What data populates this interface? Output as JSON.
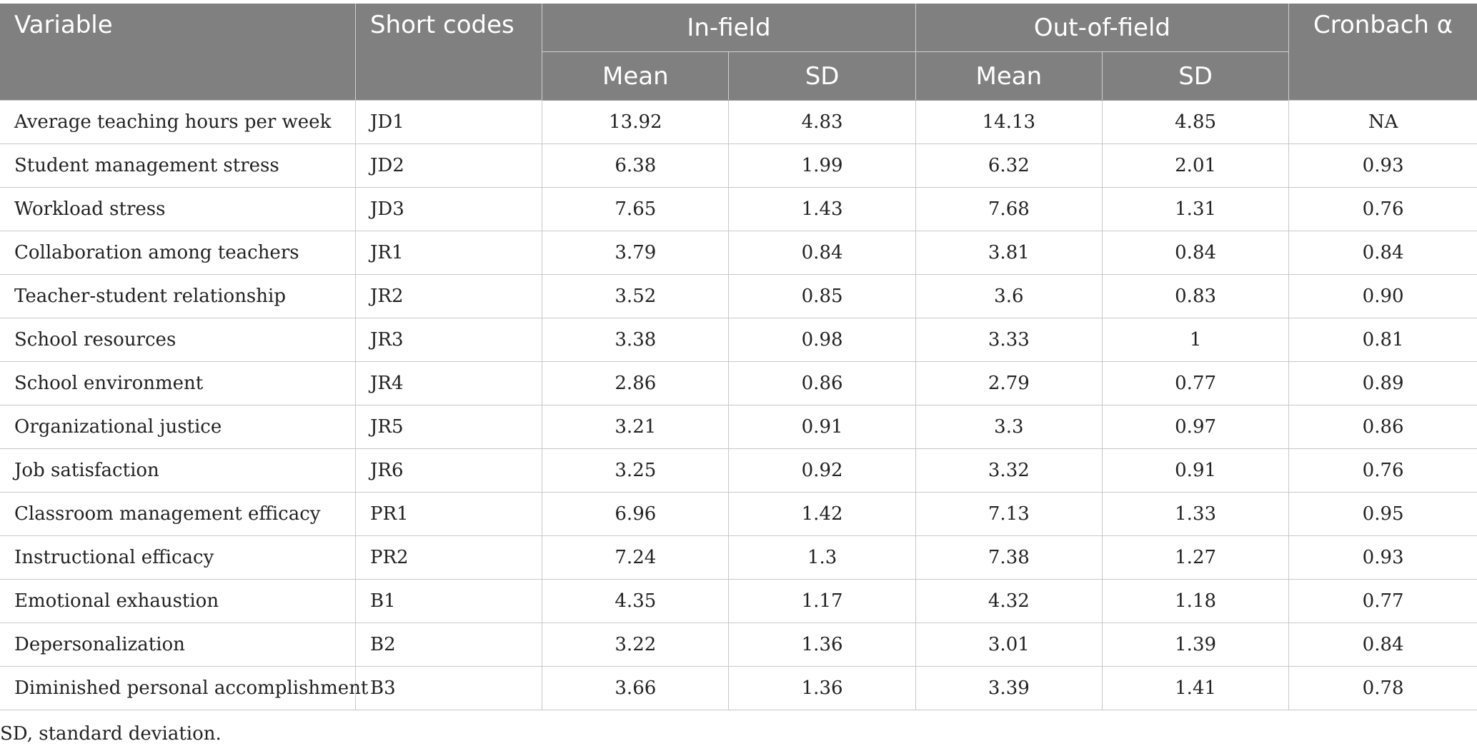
{
  "table": {
    "headers": {
      "variable": "Variable",
      "short_codes": "Short codes",
      "in_field": "In-field",
      "out_of_field": "Out-of-field",
      "cronbach": "Cronbach α",
      "mean": "Mean",
      "sd": "SD"
    },
    "rows": [
      {
        "variable": "Average teaching hours per week",
        "code": "JD1",
        "in_mean": "13.92",
        "in_sd": "4.83",
        "out_mean": "14.13",
        "out_sd": "4.85",
        "alpha": "NA"
      },
      {
        "variable": "Student management stress",
        "code": "JD2",
        "in_mean": "6.38",
        "in_sd": "1.99",
        "out_mean": "6.32",
        "out_sd": "2.01",
        "alpha": "0.93"
      },
      {
        "variable": "Workload stress",
        "code": "JD3",
        "in_mean": "7.65",
        "in_sd": "1.43",
        "out_mean": "7.68",
        "out_sd": "1.31",
        "alpha": "0.76"
      },
      {
        "variable": "Collaboration among teachers",
        "code": "JR1",
        "in_mean": "3.79",
        "in_sd": "0.84",
        "out_mean": "3.81",
        "out_sd": "0.84",
        "alpha": "0.84"
      },
      {
        "variable": "Teacher-student relationship",
        "code": "JR2",
        "in_mean": "3.52",
        "in_sd": "0.85",
        "out_mean": "3.6",
        "out_sd": "0.83",
        "alpha": "0.90"
      },
      {
        "variable": "School resources",
        "code": "JR3",
        "in_mean": "3.38",
        "in_sd": "0.98",
        "out_mean": "3.33",
        "out_sd": "1",
        "alpha": "0.81"
      },
      {
        "variable": "School environment",
        "code": "JR4",
        "in_mean": "2.86",
        "in_sd": "0.86",
        "out_mean": "2.79",
        "out_sd": "0.77",
        "alpha": "0.89"
      },
      {
        "variable": "Organizational justice",
        "code": "JR5",
        "in_mean": "3.21",
        "in_sd": "0.91",
        "out_mean": "3.3",
        "out_sd": "0.97",
        "alpha": "0.86"
      },
      {
        "variable": "Job satisfaction",
        "code": "JR6",
        "in_mean": "3.25",
        "in_sd": "0.92",
        "out_mean": "3.32",
        "out_sd": "0.91",
        "alpha": "0.76"
      },
      {
        "variable": "Classroom management efficacy",
        "code": "PR1",
        "in_mean": "6.96",
        "in_sd": "1.42",
        "out_mean": "7.13",
        "out_sd": "1.33",
        "alpha": "0.95"
      },
      {
        "variable": "Instructional efficacy",
        "code": "PR2",
        "in_mean": "7.24",
        "in_sd": "1.3",
        "out_mean": "7.38",
        "out_sd": "1.27",
        "alpha": "0.93"
      },
      {
        "variable": "Emotional exhaustion",
        "code": "B1",
        "in_mean": "4.35",
        "in_sd": "1.17",
        "out_mean": "4.32",
        "out_sd": "1.18",
        "alpha": "0.77"
      },
      {
        "variable": "Depersonalization",
        "code": "B2",
        "in_mean": "3.22",
        "in_sd": "1.36",
        "out_mean": "3.01",
        "out_sd": "1.39",
        "alpha": "0.84"
      },
      {
        "variable": "Diminished personal accomplishment",
        "code": "B3",
        "in_mean": "3.66",
        "in_sd": "1.36",
        "out_mean": "3.39",
        "out_sd": "1.41",
        "alpha": "0.78"
      }
    ]
  },
  "footnote": "SD, standard deviation.",
  "colors": {
    "header_bg": "#808080",
    "header_text": "#ffffff",
    "body_text": "#222222",
    "grid": "#c8c8c8"
  }
}
